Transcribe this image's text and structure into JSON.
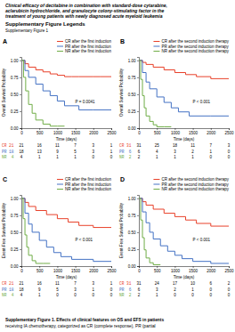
{
  "title": [
    "Clinical efficacy of decitabine in combination with standard-dose cytarabine,",
    "aclarubicin hydrochloride, and granulocyte colony-stimulating factor in the",
    "treatment of young patients with newly diagnosed acute myeloid leukemia"
  ],
  "subtitle": "Supplementary Figure Legends",
  "annotations": [
    "Supplementary Figure 1"
  ],
  "caption": [
    "Supplementary Figure 1. Effects of clinical features on OS and EFS in patients",
    "receiving IA chemotherapy, categorized as CR (complete response), PR (partial"
  ],
  "chart_data": [
    {
      "type": "step",
      "title": "A",
      "x_label": "Time (days)",
      "y_label": "Overall Survival Probability",
      "annotations": [
        "P = 0.0041"
      ],
      "legend": "upper right",
      "grid": false,
      "xlim": [
        0,
        2500
      ],
      "xticks": [
        0,
        500,
        1000,
        1500,
        2000,
        2500
      ],
      "ylim": [
        0,
        1.05
      ],
      "yticks": [
        {
          "value": 0,
          "label": "0.00"
        },
        0.25,
        {
          "value": 0.5,
          "label": "0.50"
        },
        0.75,
        {
          "value": 1,
          "label": "1.00"
        }
      ],
      "series": [
        {
          "name": "CR after the first induction",
          "color": "#e8412a",
          "x": [
            0,
            100,
            200,
            400,
            600,
            800,
            1000,
            1200,
            1400,
            1600,
            2000,
            2200,
            2500
          ],
          "values": [
            1.0,
            0.95,
            0.9,
            0.86,
            0.83,
            0.8,
            0.78,
            0.76,
            0.76,
            0.76,
            0.76,
            0.76,
            0.76
          ]
        },
        {
          "name": "PR after the first induction",
          "color": "#4472c4",
          "x": [
            0,
            100,
            200,
            400,
            600,
            800,
            1000,
            1200,
            1600,
            2000,
            2500
          ],
          "values": [
            1.0,
            0.85,
            0.75,
            0.65,
            0.55,
            0.48,
            0.4,
            0.33,
            0.27,
            0.27,
            0.27
          ]
        },
        {
          "name": "NR after the first induction",
          "color": "#70ad47",
          "x": [
            0,
            60,
            120,
            200,
            300,
            400,
            600,
            800,
            1000,
            1200
          ],
          "values": [
            1.0,
            0.75,
            0.55,
            0.35,
            0.22,
            0.12,
            0.06,
            0.03,
            0.03,
            0.03
          ]
        }
      ],
      "table": {
        "rows": [
          "CR 21",
          "PR 18",
          "NR  4"
        ],
        "values": [
          [
            21,
            16,
            11,
            7,
            3,
            1
          ],
          [
            18,
            13,
            9,
            5,
            3,
            1
          ],
          [
            4,
            1,
            1,
            1,
            0,
            0
          ]
        ]
      }
    },
    {
      "type": "step",
      "title": "B",
      "x_label": "Time (days)",
      "y_label": "Overall Survival Probability",
      "annotations": [
        "P < 0.001"
      ],
      "legend": "upper right",
      "grid": false,
      "xlim": [
        0,
        2500
      ],
      "xticks": [
        0,
        500,
        1000,
        1500,
        2000,
        2500
      ],
      "ylim": [
        0,
        1.05
      ],
      "yticks": [
        {
          "value": 0,
          "label": "0.00"
        },
        0.25,
        {
          "value": 0.5,
          "label": "0.50"
        },
        0.75,
        {
          "value": 1,
          "label": "1.00"
        }
      ],
      "series": [
        {
          "name": "CR after the second induction therapy",
          "color": "#e8412a",
          "x": [
            0,
            100,
            200,
            400,
            700,
            1000,
            1300,
            1600,
            2000,
            2500
          ],
          "values": [
            1.0,
            0.97,
            0.94,
            0.9,
            0.86,
            0.82,
            0.79,
            0.76,
            0.73,
            0.73
          ]
        },
        {
          "name": "PR after the second induction therapy",
          "color": "#4472c4",
          "x": [
            0,
            100,
            200,
            300,
            500,
            700,
            900,
            1100,
            1400,
            2000,
            2500
          ],
          "values": [
            1.0,
            0.82,
            0.68,
            0.58,
            0.46,
            0.38,
            0.3,
            0.24,
            0.18,
            0.18,
            0.18
          ]
        },
        {
          "name": "NR after the second induction therapy",
          "color": "#70ad47",
          "x": [
            0,
            50,
            100,
            150,
            200,
            300,
            400,
            500,
            700,
            900
          ],
          "values": [
            1.0,
            0.72,
            0.48,
            0.3,
            0.18,
            0.1,
            0.05,
            0.02,
            0.02,
            0.02
          ]
        }
      ],
      "table": {
        "rows": [
          "CR 31",
          "PR  6",
          "NR  2"
        ],
        "values": [
          [
            31,
            25,
            18,
            11,
            7,
            3
          ],
          [
            6,
            4,
            3,
            2,
            1,
            0
          ],
          [
            2,
            1,
            1,
            1,
            0,
            0
          ]
        ]
      }
    },
    {
      "type": "step",
      "title": "C",
      "x_label": "Time (days)",
      "y_label": "Event-Free Survival Probability",
      "annotations": [
        "P < 0.001"
      ],
      "legend": "upper right",
      "grid": false,
      "xlim": [
        0,
        2500
      ],
      "xticks": [
        0,
        500,
        1000,
        1500,
        2000,
        2500
      ],
      "ylim": [
        0,
        1.05
      ],
      "yticks": [
        {
          "value": 0,
          "label": "0.00"
        },
        0.25,
        {
          "value": 0.5,
          "label": "0.50"
        },
        0.75,
        {
          "value": 1,
          "label": "1.00"
        }
      ],
      "series": [
        {
          "name": "CR after the first induction",
          "color": "#e8412a",
          "x": [
            0,
            100,
            200,
            400,
            700,
            1000,
            1300,
            1600,
            2000,
            2500
          ],
          "values": [
            1.0,
            0.94,
            0.88,
            0.82,
            0.76,
            0.7,
            0.65,
            0.6,
            0.57,
            0.57
          ]
        },
        {
          "name": "PR after the first induction",
          "color": "#4472c4",
          "x": [
            0,
            100,
            200,
            300,
            500,
            700,
            900,
            1100,
            1400,
            2000,
            2500
          ],
          "values": [
            1.0,
            0.78,
            0.62,
            0.5,
            0.38,
            0.28,
            0.2,
            0.14,
            0.1,
            0.07,
            0.07
          ]
        },
        {
          "name": "NR after the first induction",
          "color": "#70ad47",
          "x": [
            0,
            50,
            100,
            150,
            200,
            300,
            400,
            600,
            800
          ],
          "values": [
            1.0,
            0.7,
            0.46,
            0.28,
            0.16,
            0.08,
            0.04,
            0.04,
            0.04
          ]
        }
      ],
      "table": {
        "rows": [
          "CR 21",
          "PR 18",
          "NR  4"
        ],
        "values": [
          [
            21,
            16,
            11,
            7,
            3,
            1
          ],
          [
            18,
            9,
            5,
            3,
            1,
            0
          ],
          [
            4,
            1,
            0,
            0,
            0,
            0
          ]
        ]
      }
    },
    {
      "type": "step",
      "title": "D",
      "x_label": "Time (days)",
      "y_label": "Event-Free Survival Probability",
      "annotations": [
        "P < 0.001"
      ],
      "legend": "upper right",
      "grid": false,
      "xlim": [
        0,
        2500
      ],
      "xticks": [
        0,
        500,
        1000,
        1500,
        2000,
        2500
      ],
      "ylim": [
        0,
        1.05
      ],
      "yticks": [
        {
          "value": 0,
          "label": "0.00"
        },
        0.25,
        {
          "value": 0.5,
          "label": "0.50"
        },
        0.75,
        {
          "value": 1,
          "label": "1.00"
        }
      ],
      "series": [
        {
          "name": "CR after the second induction therapy",
          "color": "#e8412a",
          "x": [
            0,
            100,
            200,
            400,
            700,
            1000,
            1300,
            1600,
            2000,
            2500
          ],
          "values": [
            1.0,
            0.95,
            0.9,
            0.84,
            0.78,
            0.73,
            0.68,
            0.63,
            0.59,
            0.59
          ]
        },
        {
          "name": "PR after the second induction therapy",
          "color": "#4472c4",
          "x": [
            0,
            100,
            200,
            300,
            400,
            600,
            800,
            1000,
            1200,
            1500,
            2000,
            2500
          ],
          "values": [
            1.0,
            0.8,
            0.64,
            0.5,
            0.4,
            0.3,
            0.22,
            0.16,
            0.11,
            0.07,
            0.04,
            0.04
          ]
        },
        {
          "name": "NR after the second induction therapy",
          "color": "#70ad47",
          "x": [
            0,
            50,
            100,
            150,
            200,
            300,
            400,
            600
          ],
          "values": [
            1.0,
            0.68,
            0.42,
            0.24,
            0.12,
            0.05,
            0.02,
            0.02
          ]
        }
      ],
      "table": {
        "rows": [
          "CR 31",
          "PR  6",
          "NR  2"
        ],
        "values": [
          [
            31,
            24,
            17,
            10,
            6,
            2
          ],
          [
            6,
            3,
            2,
            1,
            0,
            0
          ],
          [
            2,
            1,
            0,
            0,
            0,
            0
          ]
        ]
      }
    }
  ]
}
